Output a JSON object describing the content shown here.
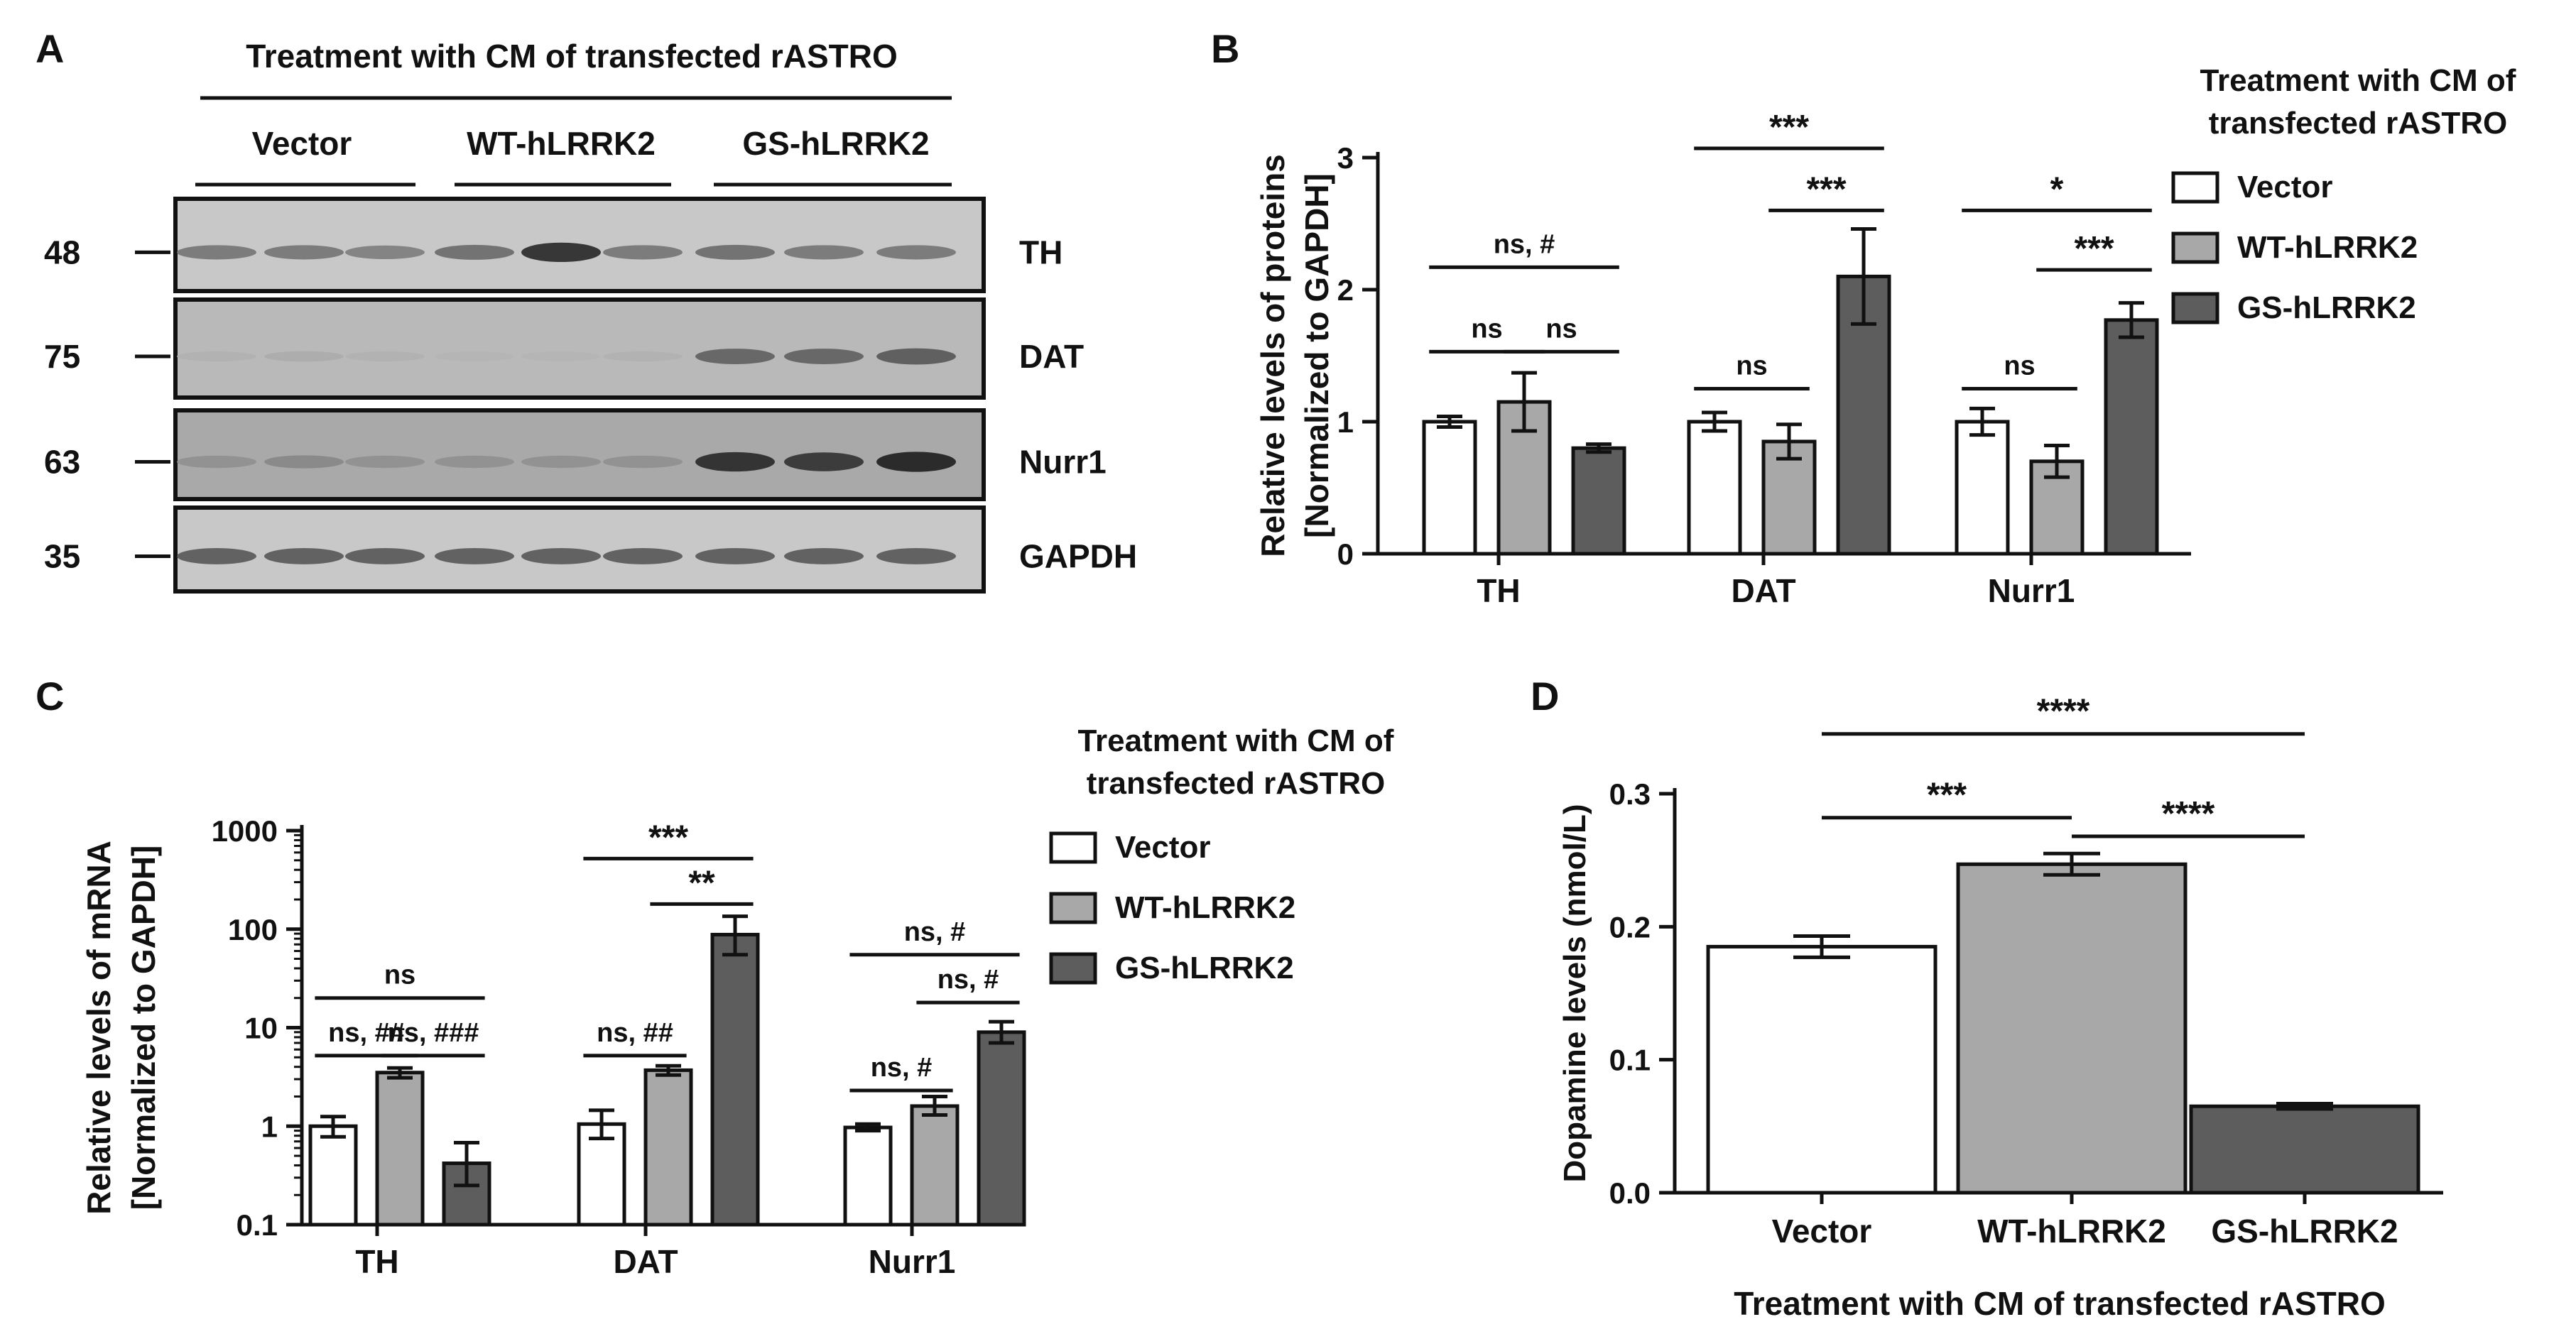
{
  "figure": {
    "panels": {
      "A": {
        "letter": "A",
        "header": "Treatment with CM of transfected rASTRO",
        "groups": [
          "Vector",
          "WT-hLRRK2",
          "GS-hLRRK2"
        ],
        "blots": [
          {
            "protein": "TH",
            "mw": "48",
            "intensities": [
              0.45,
              0.45,
              0.4,
              0.5,
              0.85,
              0.45,
              0.5,
              0.45,
              0.45
            ]
          },
          {
            "protein": "DAT",
            "mw": "75",
            "intensities": [
              0.12,
              0.15,
              0.12,
              0.1,
              0.1,
              0.12,
              0.55,
              0.55,
              0.6
            ]
          },
          {
            "protein": "Nurr1",
            "mw": "63",
            "intensities": [
              0.3,
              0.35,
              0.3,
              0.3,
              0.3,
              0.3,
              0.85,
              0.8,
              0.9
            ]
          },
          {
            "protein": "GAPDH",
            "mw": "35",
            "intensities": [
              0.6,
              0.6,
              0.6,
              0.6,
              0.6,
              0.6,
              0.6,
              0.6,
              0.6
            ]
          }
        ]
      }
    },
    "legend": {
      "title_line1": "Treatment with CM of",
      "title_line2": "transfected rASTRO",
      "items": [
        {
          "label": "Vector",
          "color": "#ffffff"
        },
        {
          "label": "WT-hLRRK2",
          "color": "#a8a8a8"
        },
        {
          "label": "GS-hLRRK2",
          "color": "#5d5d5d"
        }
      ]
    },
    "colors": {
      "vector": "#ffffff",
      "wt": "#a8a8a8",
      "gs": "#5d5d5d",
      "ink": "#111111"
    }
  },
  "chart_data": [
    {
      "panel": "B",
      "type": "bar",
      "scale": "linear",
      "ylabel_line1": "Relative levels of proteins",
      "ylabel_line2": "[Normalized to GAPDH]",
      "ylim": [
        0,
        3
      ],
      "yticks": [
        "0",
        "1",
        "2",
        "3"
      ],
      "categories": [
        "TH",
        "DAT",
        "Nurr1"
      ],
      "series": [
        {
          "name": "Vector",
          "values": [
            1.0,
            1.0,
            1.0
          ],
          "errors": [
            0.04,
            0.07,
            0.1
          ]
        },
        {
          "name": "WT-hLRRK2",
          "values": [
            1.15,
            0.85,
            0.7
          ],
          "errors": [
            0.22,
            0.13,
            0.12
          ]
        },
        {
          "name": "GS-hLRRK2",
          "values": [
            0.8,
            2.1,
            1.77
          ],
          "errors": [
            0.03,
            0.36,
            0.13
          ]
        }
      ],
      "annotations": [
        {
          "cat": 0,
          "from": 0,
          "to": 2,
          "y": 2.17,
          "label": "ns, #"
        },
        {
          "cat": 0,
          "from": 0,
          "to": 1,
          "y": 1.53,
          "label": "ns"
        },
        {
          "cat": 0,
          "from": 1,
          "to": 2,
          "y": 1.53,
          "label": "ns"
        },
        {
          "cat": 1,
          "from": 0,
          "to": 2,
          "y": 3.07,
          "label": "***"
        },
        {
          "cat": 1,
          "from": 1,
          "to": 2,
          "y": 2.6,
          "label": "***"
        },
        {
          "cat": 1,
          "from": 0,
          "to": 1,
          "y": 1.25,
          "label": "ns"
        },
        {
          "cat": 2,
          "from": 0,
          "to": 2,
          "y": 2.6,
          "label": "*"
        },
        {
          "cat": 2,
          "from": 1,
          "to": 2,
          "y": 2.15,
          "label": "***"
        },
        {
          "cat": 2,
          "from": 0,
          "to": 1,
          "y": 1.25,
          "label": "ns"
        }
      ]
    },
    {
      "panel": "C",
      "type": "bar",
      "scale": "log",
      "ylabel_line1": "Relative levels of mRNA",
      "ylabel_line2": "[Normalized to GAPDH]",
      "ylim": [
        0.1,
        1000
      ],
      "yticks": [
        "0.1",
        "1",
        "10",
        "100",
        "1000"
      ],
      "categories": [
        "TH",
        "DAT",
        "Nurr1"
      ],
      "series": [
        {
          "name": "Vector",
          "values": [
            1.0,
            1.05,
            0.97
          ],
          "err_lo": [
            0.78,
            0.75,
            0.9
          ],
          "err_hi": [
            1.25,
            1.45,
            1.05
          ]
        },
        {
          "name": "WT-hLRRK2",
          "values": [
            3.5,
            3.7,
            1.6
          ],
          "err_lo": [
            3.1,
            3.3,
            1.3
          ],
          "err_hi": [
            3.9,
            4.1,
            2.0
          ]
        },
        {
          "name": "GS-hLRRK2",
          "values": [
            0.42,
            88,
            9.0
          ],
          "err_lo": [
            0.25,
            55,
            7.0
          ],
          "err_hi": [
            0.68,
            135,
            11.5
          ]
        }
      ],
      "annotations": [
        {
          "cat": 0,
          "from": 0,
          "to": 2,
          "y": 20,
          "label": "ns"
        },
        {
          "cat": 0,
          "from": 0,
          "to": 1,
          "y": 5.2,
          "label": "ns, ##"
        },
        {
          "cat": 0,
          "from": 1,
          "to": 2,
          "y": 5.2,
          "label": "ns, ###"
        },
        {
          "cat": 1,
          "from": 0,
          "to": 2,
          "y": 520,
          "label": "***"
        },
        {
          "cat": 1,
          "from": 1,
          "to": 2,
          "y": 180,
          "label": "**"
        },
        {
          "cat": 1,
          "from": 0,
          "to": 1,
          "y": 5.2,
          "label": "ns, ##"
        },
        {
          "cat": 2,
          "from": 0,
          "to": 2,
          "y": 55,
          "label": "ns, #"
        },
        {
          "cat": 2,
          "from": 1,
          "to": 2,
          "y": 18,
          "label": "ns, #"
        },
        {
          "cat": 2,
          "from": 0,
          "to": 1,
          "y": 2.3,
          "label": "ns, #"
        }
      ]
    },
    {
      "panel": "D",
      "type": "bar",
      "scale": "linear",
      "ylabel": "Dopamine levels (nmol/L)",
      "xlabel": "Treatment with CM of transfected rASTRO",
      "ylim": [
        0,
        0.3
      ],
      "yticks": [
        "0.0",
        "0.1",
        "0.2",
        "0.3"
      ],
      "categories": [
        "Vector",
        "WT-hLRRK2",
        "GS-hLRRK2"
      ],
      "values": [
        0.185,
        0.247,
        0.065
      ],
      "errors": [
        0.008,
        0.008,
        0.002
      ],
      "annotations": [
        {
          "from": 0,
          "to": 2,
          "y": 0.345,
          "label": "****"
        },
        {
          "from": 0,
          "to": 1,
          "y": 0.282,
          "label": "***"
        },
        {
          "from": 1,
          "to": 2,
          "y": 0.268,
          "label": "****"
        }
      ]
    }
  ]
}
